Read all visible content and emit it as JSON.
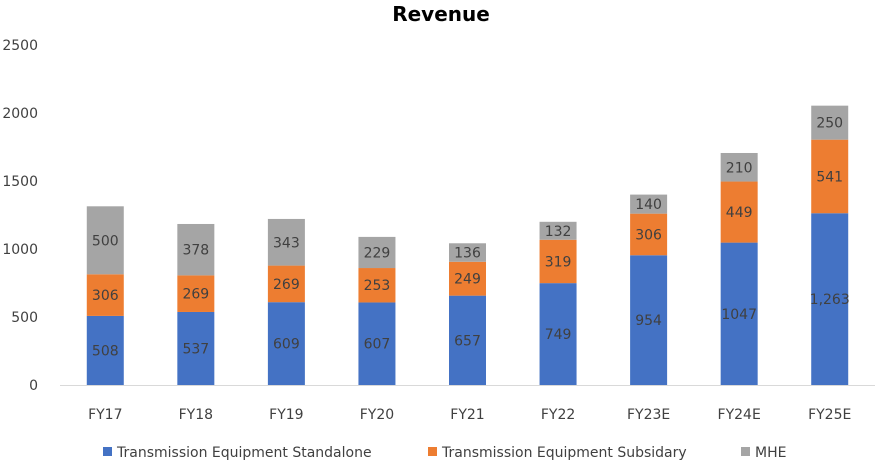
{
  "chart_data": {
    "type": "bar",
    "stacked": true,
    "title": "Revenue",
    "xlabel": "",
    "ylabel": "",
    "ylim": [
      0,
      2500
    ],
    "yticks": [
      "0",
      "500",
      "1000",
      "1500",
      "2000",
      "2500"
    ],
    "categories": [
      "FY17",
      "FY18",
      "FY19",
      "FY20",
      "FY21",
      "FY22",
      "FY23E",
      "FY24E",
      "FY25E"
    ],
    "series": [
      {
        "name": "Transmission Equipment Standalone",
        "color": "#4472C4",
        "values": [
          508,
          537,
          609,
          607,
          657,
          749,
          954,
          1047,
          1263
        ],
        "labels": [
          "508",
          "537",
          "609",
          "607",
          "657",
          "749",
          "954",
          "1047",
          "1,263"
        ]
      },
      {
        "name": "Transmission Equipment Subsidary",
        "color": "#ED7D31",
        "values": [
          306,
          269,
          269,
          253,
          249,
          319,
          306,
          449,
          541
        ],
        "labels": [
          "306",
          "269",
          "269",
          "253",
          "249",
          "319",
          "306",
          "449",
          "541"
        ]
      },
      {
        "name": "MHE",
        "color": "#A5A5A5",
        "values": [
          500,
          378,
          343,
          229,
          136,
          132,
          140,
          210,
          250
        ],
        "labels": [
          "500",
          "378",
          "343",
          "229",
          "136",
          "132",
          "140",
          "210",
          "250"
        ]
      }
    ],
    "grid": false,
    "legend_position": "bottom"
  }
}
